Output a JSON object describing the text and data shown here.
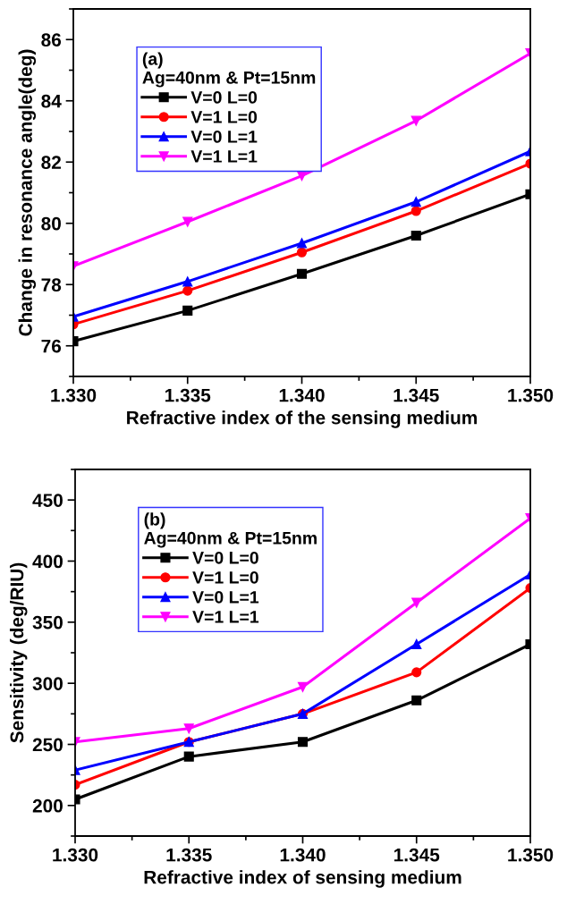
{
  "chart_data": [
    {
      "type": "line",
      "xlabel": "Refractive index of the sensing medium",
      "ylabel": "Change in resonance angle(deg)",
      "legend_title": "(a)\nAg=40nm & Pt=15nm",
      "legend": "top left",
      "grid": false,
      "x": [
        1.33,
        1.335,
        1.34,
        1.345,
        1.35
      ],
      "xlim": [
        1.33,
        1.35
      ],
      "xticks": [
        {
          "value": 1.33,
          "label": "1.330"
        },
        {
          "value": 1.335,
          "label": "1.335"
        },
        {
          "value": 1.34,
          "label": "1.340"
        },
        {
          "value": 1.345,
          "label": "1.345"
        },
        {
          "value": 1.35,
          "label": "1.350"
        }
      ],
      "ylim": [
        75,
        87
      ],
      "yticks": [
        76,
        78,
        80,
        82,
        84,
        86
      ],
      "series": [
        {
          "name": "V=0 L=0",
          "color": "#000000",
          "marker": "square",
          "values": [
            76.15,
            77.15,
            78.35,
            79.6,
            80.95
          ]
        },
        {
          "name": "V=1 L=0",
          "color": "#ff0000",
          "marker": "circle",
          "values": [
            76.7,
            77.8,
            79.05,
            80.4,
            81.95
          ]
        },
        {
          "name": "V=0 L=1",
          "color": "#0000ff",
          "marker": "triangle",
          "values": [
            76.95,
            78.1,
            79.35,
            80.7,
            82.35
          ]
        },
        {
          "name": "V=1 L=1",
          "color": "#ff00ff",
          "marker": "triangle_down",
          "values": [
            78.6,
            80.05,
            81.55,
            83.35,
            85.55
          ]
        }
      ]
    },
    {
      "type": "line",
      "xlabel": "Refractive index of sensing medium",
      "ylabel": "Sensitivity (deg/RIU)",
      "legend_title": "(b)\nAg=40nm & Pt=15nm",
      "legend": "top left",
      "grid": false,
      "x": [
        1.33,
        1.335,
        1.34,
        1.345,
        1.35
      ],
      "xlim": [
        1.33,
        1.35
      ],
      "xticks": [
        {
          "value": 1.33,
          "label": "1.330"
        },
        {
          "value": 1.335,
          "label": "1.335"
        },
        {
          "value": 1.34,
          "label": "1.340"
        },
        {
          "value": 1.345,
          "label": "1.345"
        },
        {
          "value": 1.35,
          "label": "1.350"
        }
      ],
      "ylim": [
        175,
        475
      ],
      "yticks": [
        200,
        250,
        300,
        350,
        400,
        450
      ],
      "series": [
        {
          "name": "V=0 L=0",
          "color": "#000000",
          "marker": "square",
          "values": [
            205,
            240,
            252,
            286,
            332
          ]
        },
        {
          "name": "V=1 L=0",
          "color": "#ff0000",
          "marker": "circle",
          "values": [
            217,
            252,
            275,
            309,
            378
          ]
        },
        {
          "name": "V=0 L=1",
          "color": "#0000ff",
          "marker": "triangle",
          "values": [
            229,
            252,
            275,
            332,
            389
          ]
        },
        {
          "name": "V=1 L=1",
          "color": "#ff00ff",
          "marker": "triangle_down",
          "values": [
            252,
            263,
            297,
            366,
            435
          ]
        }
      ]
    }
  ]
}
